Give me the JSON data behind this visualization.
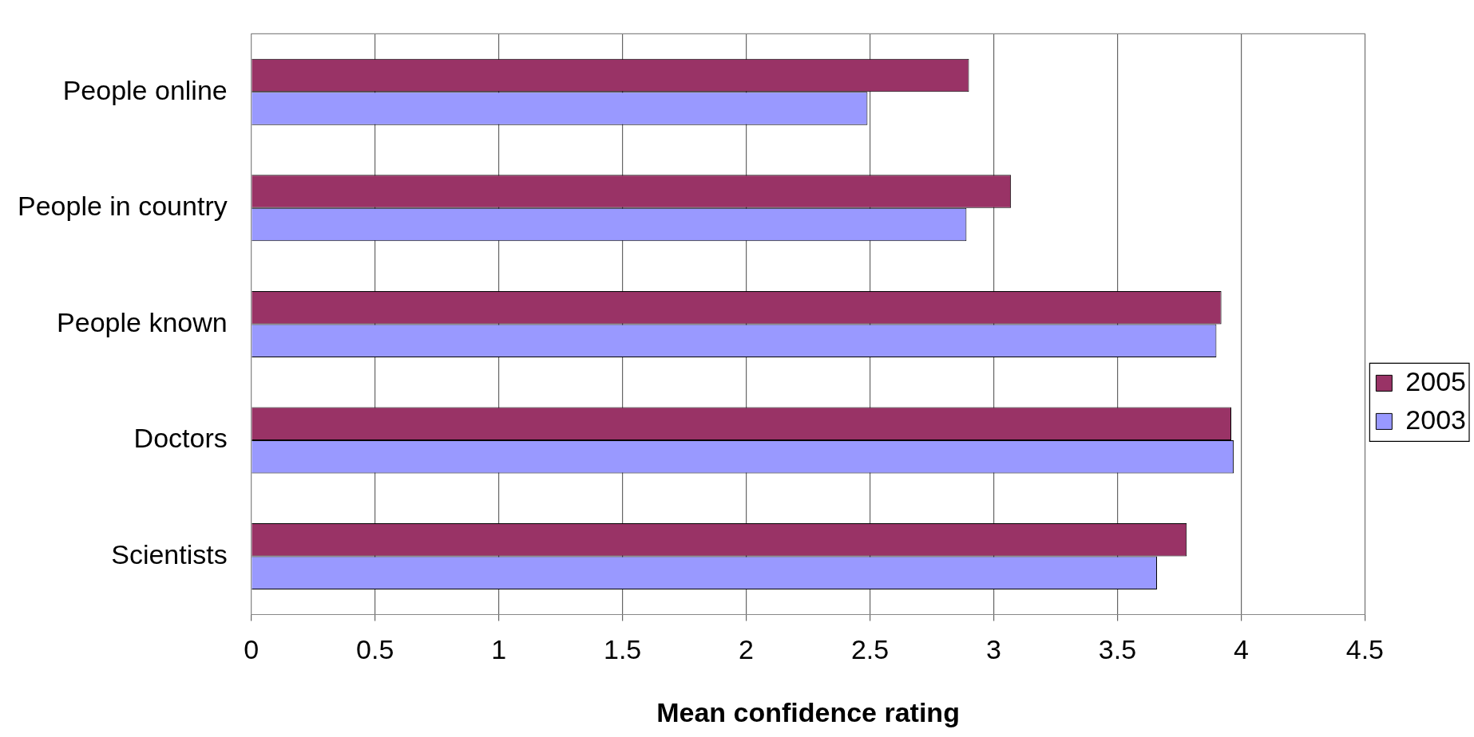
{
  "chart_data": {
    "type": "bar",
    "orientation": "horizontal",
    "xlabel": "Mean confidence rating",
    "categories": [
      "People online",
      "People in country",
      "People known",
      "Doctors",
      "Scientists"
    ],
    "series": [
      {
        "name": "2005",
        "color": "#993366",
        "values": [
          2.9,
          3.07,
          3.92,
          3.96,
          3.78
        ]
      },
      {
        "name": "2003",
        "color": "#9999ff",
        "values": [
          2.49,
          2.89,
          3.9,
          3.97,
          3.66
        ]
      }
    ],
    "xlim": [
      0,
      4.5
    ],
    "xticks": [
      0,
      0.5,
      1,
      1.5,
      2,
      2.5,
      3,
      3.5,
      4,
      4.5
    ],
    "grid": "x",
    "legend": "right"
  }
}
